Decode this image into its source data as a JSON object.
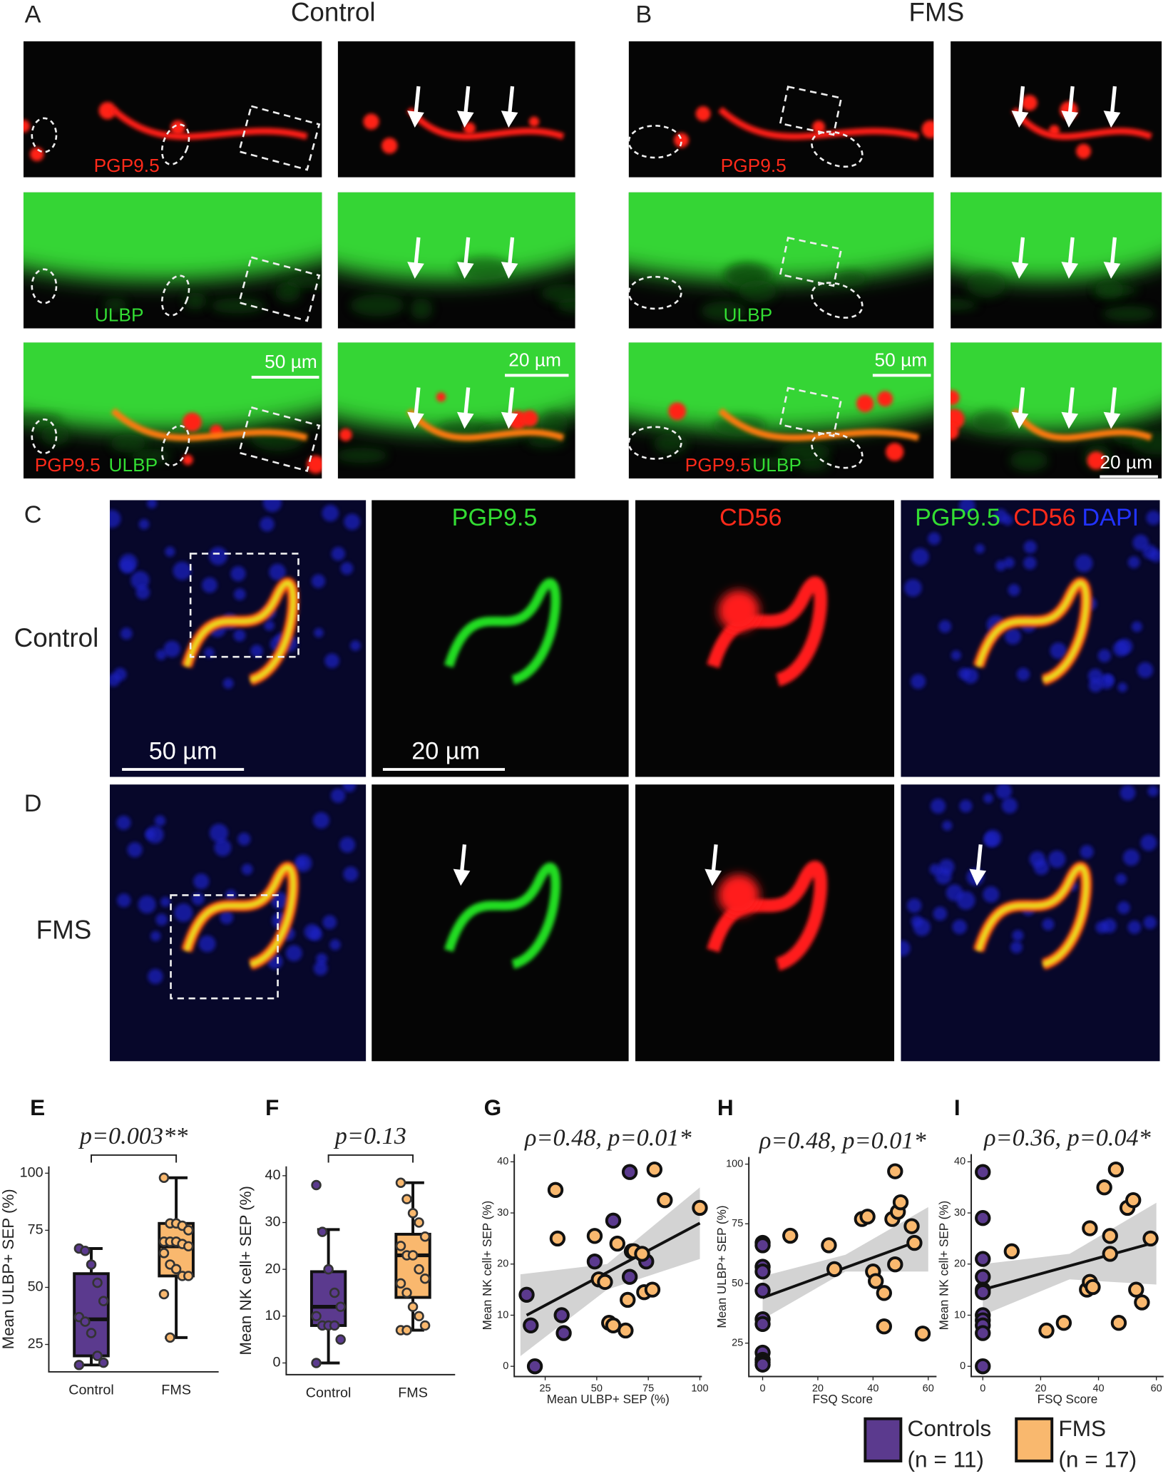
{
  "figure": {
    "letters": [
      "A",
      "B",
      "C",
      "D"
    ],
    "ab_titles": [
      "Control",
      "FMS"
    ],
    "a_channels": [
      [
        "PGP9.5"
      ],
      [
        "ULBP"
      ],
      [
        "PGP9.5",
        "ULBP"
      ]
    ],
    "b_channels": [
      [
        "PGP9.5"
      ],
      [
        "ULBP"
      ],
      [
        "PGP9.5",
        "ULBP"
      ]
    ],
    "ab_scales": [
      "50 µm",
      "20 µm",
      "50 µm",
      "20 µm"
    ],
    "cd_rows": [
      "Control",
      "FMS"
    ],
    "cd_channels": [
      "PGP9.5",
      "CD56",
      "PGP9.5",
      "CD56",
      "DAPI"
    ],
    "cd_scales": [
      "50 µm",
      "20 µm"
    ],
    "legend": [
      {
        "label": "Controls",
        "n": "(n = 11)",
        "color": "#5b3a8e"
      },
      {
        "label": "FMS",
        "n": "(n = 17)",
        "color": "#f9b86e"
      }
    ]
  },
  "chart_data": [
    {
      "type": "box",
      "label": "E",
      "annotation": "p=0.003**",
      "ylabel": "Mean ULBP+ SEP (%)",
      "categories": [
        "Control",
        "FMS"
      ],
      "ylim": [
        13,
        103
      ],
      "yticks": [
        25,
        50,
        75,
        100
      ],
      "boxes": [
        {
          "color": "#5b3a8e",
          "whisker_low": 16,
          "q1": 20,
          "median": 36,
          "q3": 56,
          "whisker_high": 67,
          "points": [
            67,
            66,
            60,
            52,
            44,
            37,
            35,
            30,
            20,
            17,
            16
          ]
        },
        {
          "color": "#f9b86e",
          "whisker_low": 28,
          "q1": 55,
          "median": 68,
          "q3": 78,
          "whisker_high": 98,
          "points": [
            98,
            78,
            78,
            77,
            75,
            70,
            70,
            70,
            69,
            68,
            65,
            60,
            58,
            55,
            55,
            47,
            28
          ]
        }
      ]
    },
    {
      "type": "box",
      "label": "F",
      "annotation": "p=0.13",
      "ylabel": "Mean NK cell+ SEP (%)",
      "categories": [
        "Control",
        "FMS"
      ],
      "ylim": [
        -2.5,
        42
      ],
      "yticks": [
        0,
        10,
        20,
        30,
        40
      ],
      "boxes": [
        {
          "color": "#5b3a8e",
          "whisker_low": 0,
          "q1": 8,
          "median": 12,
          "q3": 19.5,
          "whisker_high": 28.5,
          "points": [
            38,
            28,
            20,
            15,
            12,
            10,
            8,
            8,
            8,
            5,
            0
          ]
        },
        {
          "color": "#f9b86e",
          "whisker_low": 7,
          "q1": 14,
          "median": 23,
          "q3": 27.5,
          "whisker_high": 38.5,
          "points": [
            38.5,
            35,
            32,
            30,
            27,
            25,
            23,
            23,
            20,
            18,
            17,
            15,
            12,
            10,
            8,
            7,
            7
          ]
        }
      ]
    },
    {
      "type": "scatter",
      "label": "G",
      "annotation": "ρ=0.48, p=0.01*",
      "xlabel": "Mean ULBP+ SEP (%)",
      "ylabel": "Mean NK cell+ SEP (%)",
      "xlim": [
        10,
        101
      ],
      "xticks": [
        25,
        50,
        75,
        100
      ],
      "ylim": [
        -2,
        41.5
      ],
      "yticks": [
        0,
        10,
        20,
        30,
        40
      ],
      "fit": {
        "x": [
          16,
          100
        ],
        "y": [
          10,
          28
        ]
      },
      "ci": {
        "x": [
          13,
          55,
          100
        ],
        "lower": [
          2,
          15,
          21
        ],
        "upper": [
          18,
          20,
          35
        ]
      },
      "series": [
        {
          "color": "#5b3a8e",
          "x": [
            16,
            18,
            20,
            33,
            34,
            49,
            58,
            66,
            66,
            67,
            74
          ],
          "y": [
            14,
            8,
            0,
            10,
            6.5,
            20.5,
            28.5,
            38,
            17.5,
            22.5,
            20.5
          ]
        },
        {
          "color": "#f9b86e",
          "x": [
            30,
            31,
            49,
            51,
            54,
            56,
            64,
            65,
            68,
            72,
            73,
            77,
            78,
            83,
            100,
            58,
            60
          ],
          "y": [
            34.5,
            25,
            25.5,
            17,
            16.5,
            8.5,
            7,
            13,
            22.5,
            22,
            14.5,
            15,
            38.5,
            32.5,
            31,
            8,
            24
          ]
        }
      ]
    },
    {
      "type": "scatter",
      "label": "H",
      "annotation": "ρ=0.48, p=0.01*",
      "xlabel": "FSQ Score",
      "ylabel": "Mean ULBP+ SEP (%)",
      "xlim": [
        -5,
        63
      ],
      "xticks": [
        0,
        20,
        40,
        60
      ],
      "ylim": [
        11,
        103
      ],
      "yticks": [
        25,
        50,
        75,
        100
      ],
      "fit": {
        "x": [
          0,
          57
        ],
        "y": [
          44,
          68
        ]
      },
      "ci": {
        "x": [
          0,
          30,
          60
        ],
        "lower": [
          35,
          55,
          55
        ],
        "upper": [
          53,
          62,
          82
        ]
      },
      "series": [
        {
          "color": "#5b3a8e",
          "x": [
            0,
            0,
            0,
            0,
            0,
            0,
            0,
            0,
            0,
            0,
            0
          ],
          "y": [
            67,
            66,
            57,
            55,
            47,
            35,
            33,
            21,
            18,
            17,
            16
          ]
        },
        {
          "color": "#f9b86e",
          "x": [
            10,
            24,
            26,
            36,
            38,
            40,
            41,
            44,
            44,
            47,
            48,
            48,
            49,
            50,
            54,
            55,
            58
          ],
          "y": [
            70,
            66,
            56,
            77,
            78,
            55,
            51,
            46,
            32,
            77,
            97,
            58,
            80,
            84,
            74,
            67,
            29
          ]
        }
      ]
    },
    {
      "type": "scatter",
      "label": "I",
      "annotation": "ρ=0.36, p=0.04*",
      "xlabel": "FSQ Score",
      "ylabel": "Mean NK cell+ SEP (%)",
      "xlim": [
        -4,
        62.5
      ],
      "xticks": [
        0,
        20,
        40,
        60
      ],
      "ylim": [
        -2,
        41.5
      ],
      "yticks": [
        0,
        10,
        20,
        30,
        40
      ],
      "fit": {
        "x": [
          0,
          58
        ],
        "y": [
          15,
          24
        ]
      },
      "ci": {
        "x": [
          0,
          30,
          60
        ],
        "lower": [
          10,
          17,
          16
        ],
        "upper": [
          20,
          22,
          32
        ]
      },
      "series": [
        {
          "color": "#5b3a8e",
          "x": [
            0,
            0,
            0,
            0,
            0,
            0,
            0,
            0,
            0,
            0,
            0
          ],
          "y": [
            38,
            29,
            21,
            17.5,
            15,
            14.5,
            10,
            9,
            8,
            6.5,
            0
          ]
        },
        {
          "color": "#f9b86e",
          "x": [
            10,
            22,
            28,
            36,
            37,
            37,
            38,
            42,
            44,
            44,
            46,
            47,
            50,
            52,
            53,
            55,
            58
          ],
          "y": [
            22.5,
            7,
            8.5,
            15,
            27,
            16.5,
            15.5,
            35,
            25.5,
            22,
            38.5,
            8.5,
            31,
            32.5,
            15,
            12.5,
            25
          ]
        }
      ]
    }
  ]
}
